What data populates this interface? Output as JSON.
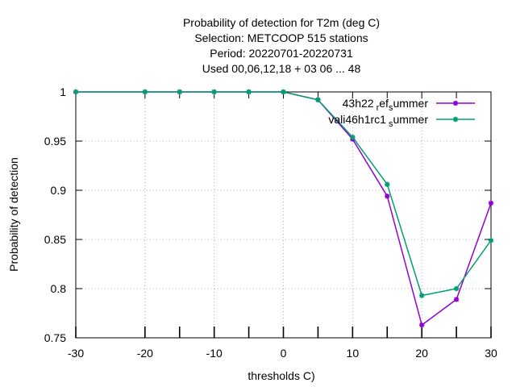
{
  "chart_data": {
    "type": "line",
    "title_lines": [
      "Probability of detection  for T2m (deg C)",
      "Selection: METCOOP    515 stations",
      "Period: 20220701-20220731",
      "Used  00,06,12,18  + 03 06 ... 48"
    ],
    "xlabel": "thresholds C)",
    "ylabel": "Probability of detection",
    "xlim": [
      -30,
      30
    ],
    "ylim": [
      0.75,
      1.0
    ],
    "xticks": [
      -30,
      -20,
      -15,
      -10,
      -5,
      0,
      5,
      10,
      15,
      20,
      25,
      30
    ],
    "xtick_labels": [
      {
        "value": -30,
        "label": "-30"
      },
      {
        "value": -20,
        "label": "-20"
      },
      {
        "value": -10,
        "label": "-10"
      },
      {
        "value": 0,
        "label": "0"
      },
      {
        "value": 10,
        "label": "10"
      },
      {
        "value": 20,
        "label": "20"
      },
      {
        "value": 30,
        "label": "30"
      }
    ],
    "yticks": [
      {
        "value": 1.0,
        "label": "1"
      },
      {
        "value": 0.95,
        "label": "0.95"
      },
      {
        "value": 0.9,
        "label": "0.9"
      },
      {
        "value": 0.85,
        "label": "0.85"
      },
      {
        "value": 0.8,
        "label": "0.8"
      },
      {
        "value": 0.75,
        "label": "0.75"
      }
    ],
    "grid": true,
    "legend_position": "top-right",
    "x": [
      -30,
      -20,
      -15,
      -10,
      -5,
      0,
      5,
      10,
      15,
      20,
      25,
      30
    ],
    "series": [
      {
        "name_main": "43h22",
        "name_sub1": "r",
        "name_mid": "ef",
        "name_sub2": "s",
        "name_end": "ummer",
        "color": "#9400d3",
        "values": [
          1.0,
          1.0,
          1.0,
          1.0,
          1.0,
          1.0,
          0.992,
          0.952,
          0.894,
          0.763,
          0.789,
          0.887
        ]
      },
      {
        "name_main": "vali46h1rc1",
        "name_sub1": "s",
        "name_end": "ummer",
        "color": "#009e73",
        "values": [
          1.0,
          1.0,
          1.0,
          1.0,
          1.0,
          1.0,
          0.992,
          0.954,
          0.906,
          0.793,
          0.8,
          0.849
        ]
      }
    ]
  }
}
